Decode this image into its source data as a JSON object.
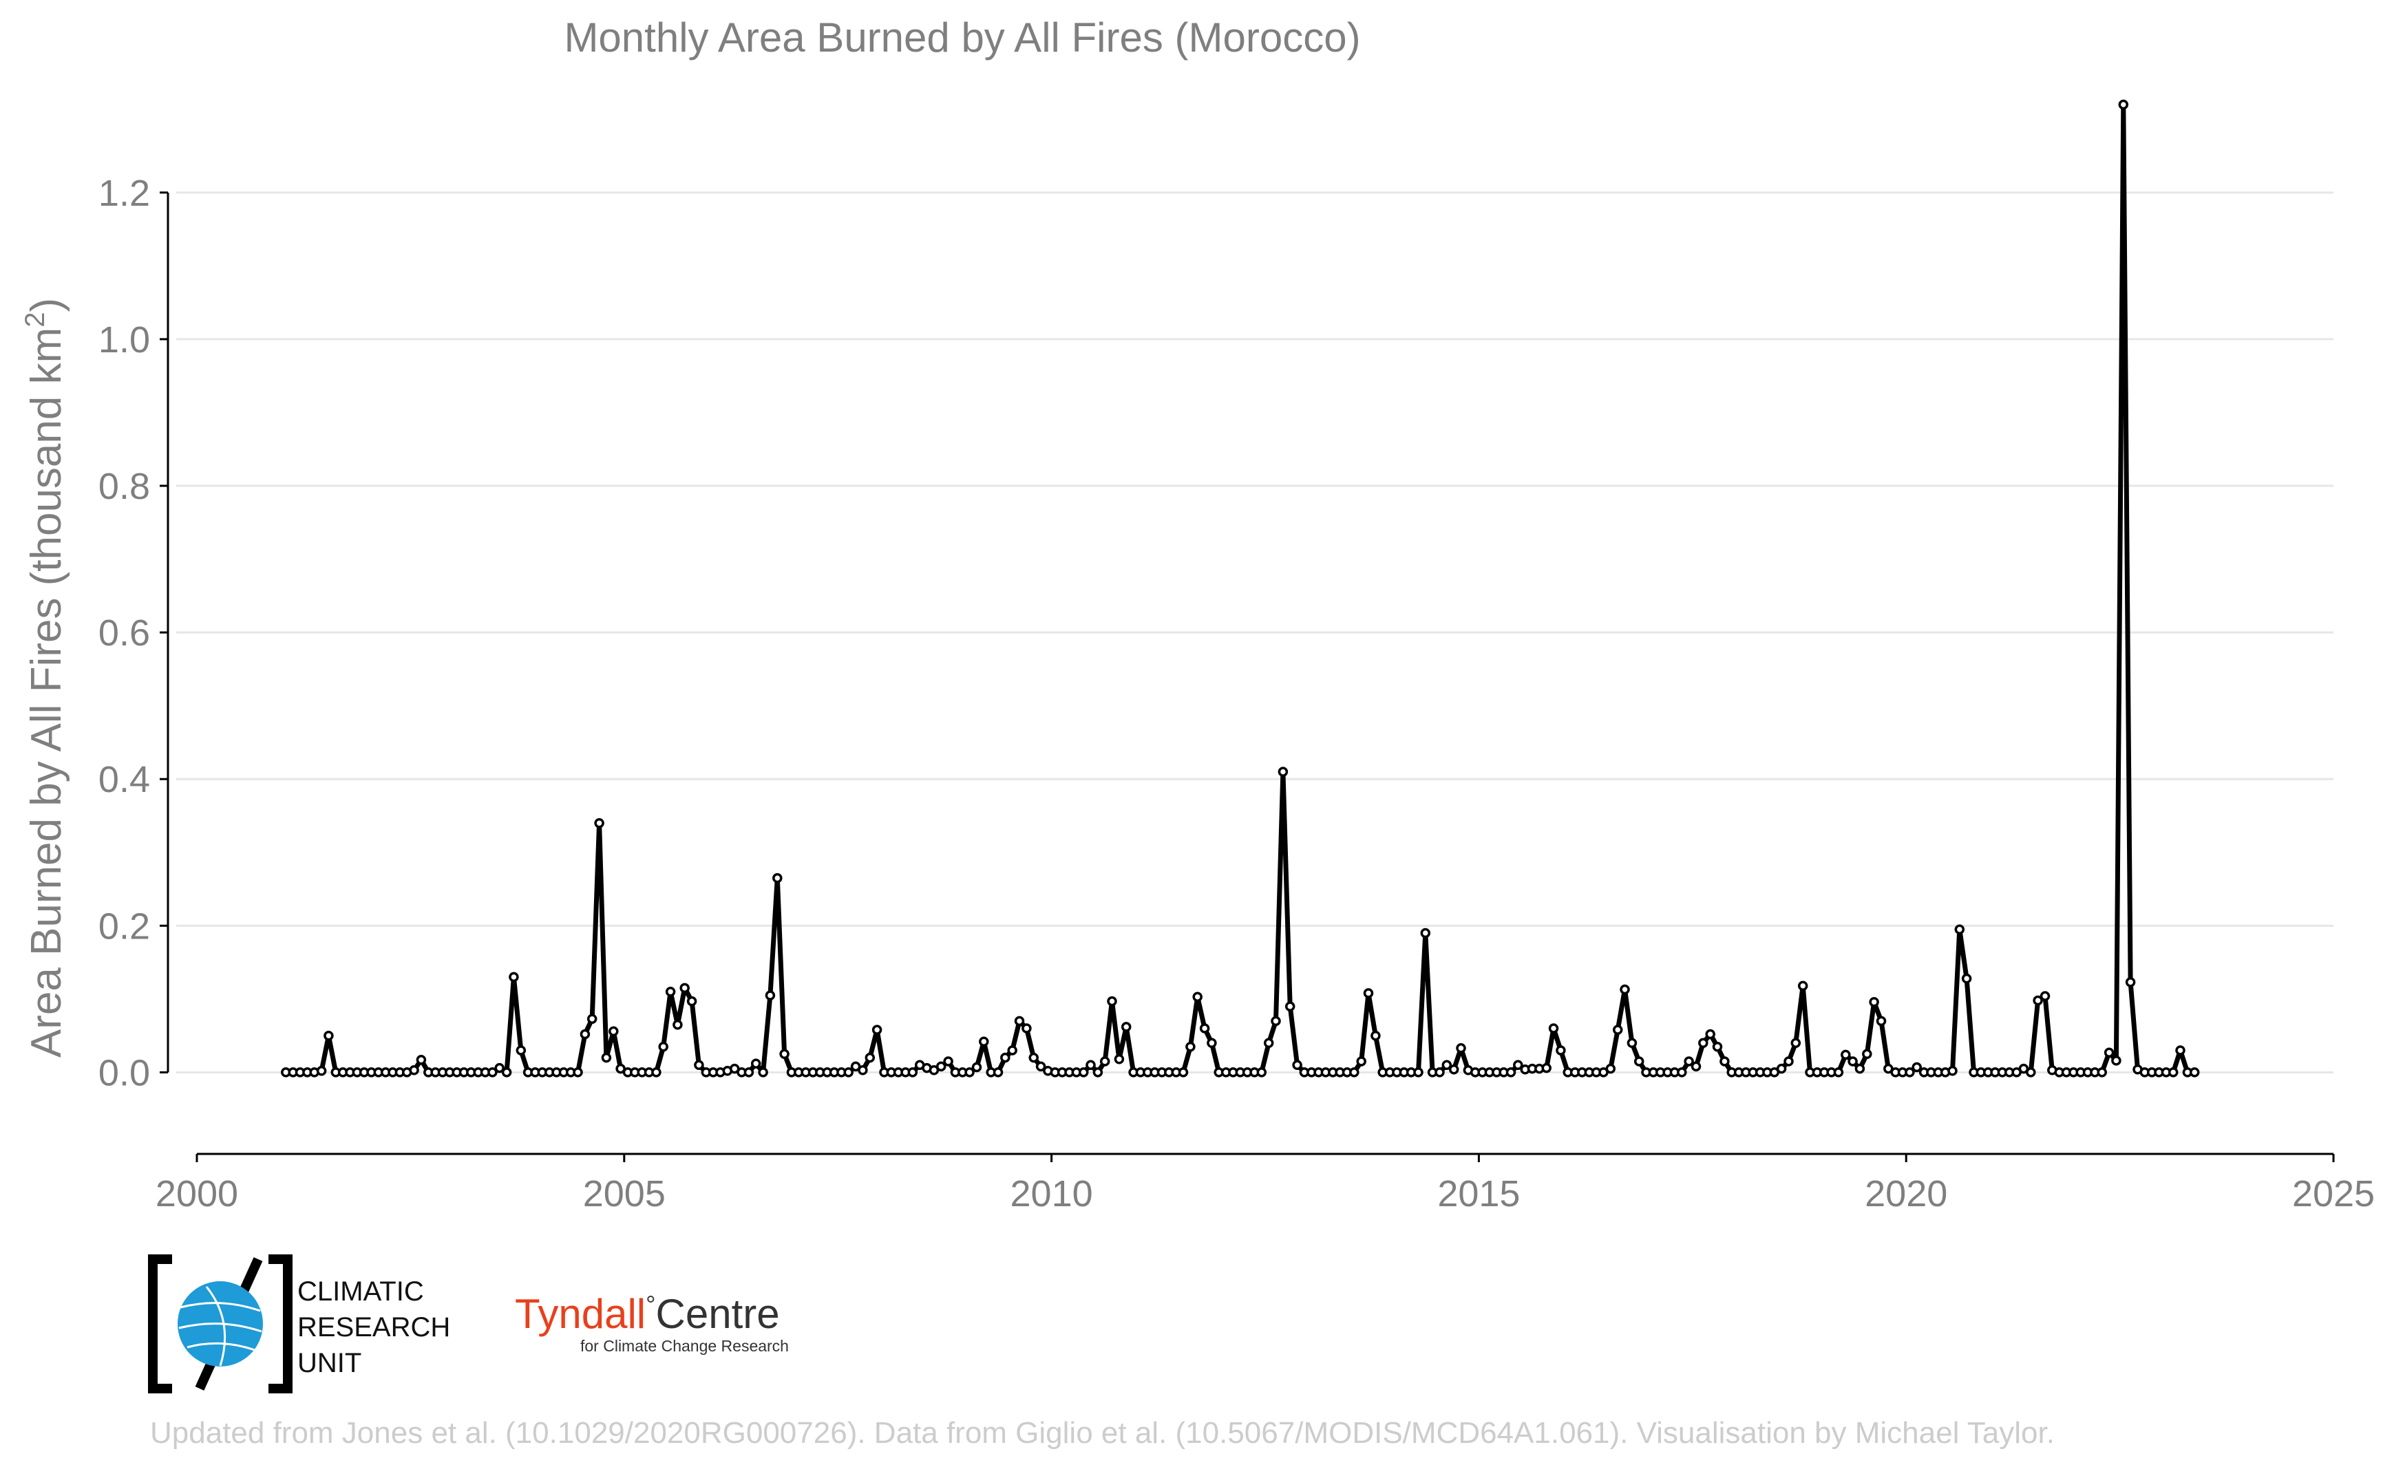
{
  "chart_data": {
    "type": "line",
    "title": "Monthly Area Burned by All Fires (Morocco)",
    "xlabel": "",
    "ylabel": "Area Burned by All Fires (thousand km",
    "ylabel_sup": "2",
    "ylabel_close": ")",
    "xlim": [
      2000,
      2025
    ],
    "ylim": [
      -0.1,
      1.35
    ],
    "xticks": [
      2000,
      2005,
      2010,
      2015,
      2020,
      2025
    ],
    "yticks": [
      0.0,
      0.2,
      0.4,
      0.6,
      0.8,
      1.0,
      1.2
    ],
    "ytick_labels": [
      "0.0",
      "0.2",
      "0.4",
      "0.6",
      "0.8",
      "1.0",
      "1.2"
    ],
    "grid": "horizontal",
    "start": "2001-01",
    "end": "2023-05",
    "series": [
      {
        "values": [
          0,
          0,
          0,
          0,
          0,
          0.002,
          0.05,
          0,
          0,
          0,
          0,
          0,
          0,
          0,
          0,
          0,
          0,
          0,
          0.003,
          0.017,
          0,
          0,
          0,
          0,
          0,
          0,
          0,
          0,
          0,
          0,
          0.006,
          0,
          0.13,
          0.03,
          0,
          0,
          0,
          0,
          0,
          0,
          0,
          0,
          0.052,
          0.073,
          0.34,
          0.02,
          0.056,
          0.005,
          0,
          0,
          0,
          0,
          0,
          0.035,
          0.11,
          0.065,
          0.115,
          0.097,
          0.01,
          0,
          0,
          0,
          0.002,
          0.005,
          0,
          0,
          0.012,
          0,
          0.105,
          0.265,
          0.025,
          0,
          0,
          0,
          0,
          0,
          0,
          0,
          0,
          0,
          0.008,
          0.003,
          0.02,
          0.058,
          0,
          0,
          0,
          0,
          0,
          0.01,
          0.006,
          0.003,
          0.008,
          0.015,
          0,
          0,
          0,
          0.007,
          0.042,
          0,
          0,
          0.02,
          0.03,
          0.07,
          0.06,
          0.02,
          0.008,
          0.002,
          0,
          0,
          0,
          0,
          0,
          0.01,
          0,
          0.015,
          0.097,
          0.018,
          0.062,
          0,
          0,
          0,
          0,
          0,
          0,
          0,
          0,
          0.035,
          0.103,
          0.06,
          0.04,
          0,
          0,
          0,
          0,
          0,
          0,
          0,
          0.04,
          0.07,
          0.41,
          0.09,
          0.01,
          0,
          0,
          0,
          0,
          0,
          0,
          0,
          0,
          0.015,
          0.108,
          0.05,
          0,
          0,
          0,
          0,
          0,
          0,
          0.19,
          0,
          0,
          0.01,
          0.004,
          0.033,
          0.003,
          0,
          0,
          0,
          0,
          0,
          0,
          0.01,
          0.004,
          0.005,
          0.005,
          0.006,
          0.06,
          0.03,
          0,
          0,
          0,
          0,
          0,
          0,
          0.005,
          0.058,
          0.113,
          0.04,
          0.015,
          0,
          0,
          0,
          0,
          0,
          0,
          0.015,
          0.008,
          0.04,
          0.052,
          0.035,
          0.015,
          0,
          0,
          0,
          0,
          0,
          0,
          0,
          0.005,
          0.015,
          0.04,
          0.118,
          0,
          0,
          0,
          0,
          0,
          0.024,
          0.015,
          0.005,
          0.025,
          0.096,
          0.07,
          0.005,
          0,
          0,
          0,
          0.007,
          0,
          0,
          0,
          0,
          0.002,
          0.195,
          0.128,
          0,
          0,
          0,
          0,
          0,
          0,
          0,
          0.005,
          0,
          0.098,
          0.104,
          0.003,
          0,
          0,
          0,
          0,
          0,
          0,
          0,
          0.027,
          0.016,
          1.32,
          0.123,
          0.004,
          0,
          0,
          0,
          0,
          0,
          0.03,
          0,
          0
        ]
      }
    ]
  },
  "logos": {
    "cru": {
      "line1": "CLIMATIC",
      "line2": "RESEARCH",
      "line3": "UNIT",
      "color": "#1f9bd7"
    },
    "tyndall": {
      "name_part1": "Tyndall",
      "degree": "°",
      "name_part2": "Centre",
      "tagline": "for Climate Change Research",
      "accent": "#e8401c"
    }
  },
  "footer": {
    "credit": "Updated from Jones et al. (10.1029/2020RG000726). Data from Giglio et al. (10.5067/MODIS/MCD64A1.061). Visualisation by Michael Taylor."
  }
}
